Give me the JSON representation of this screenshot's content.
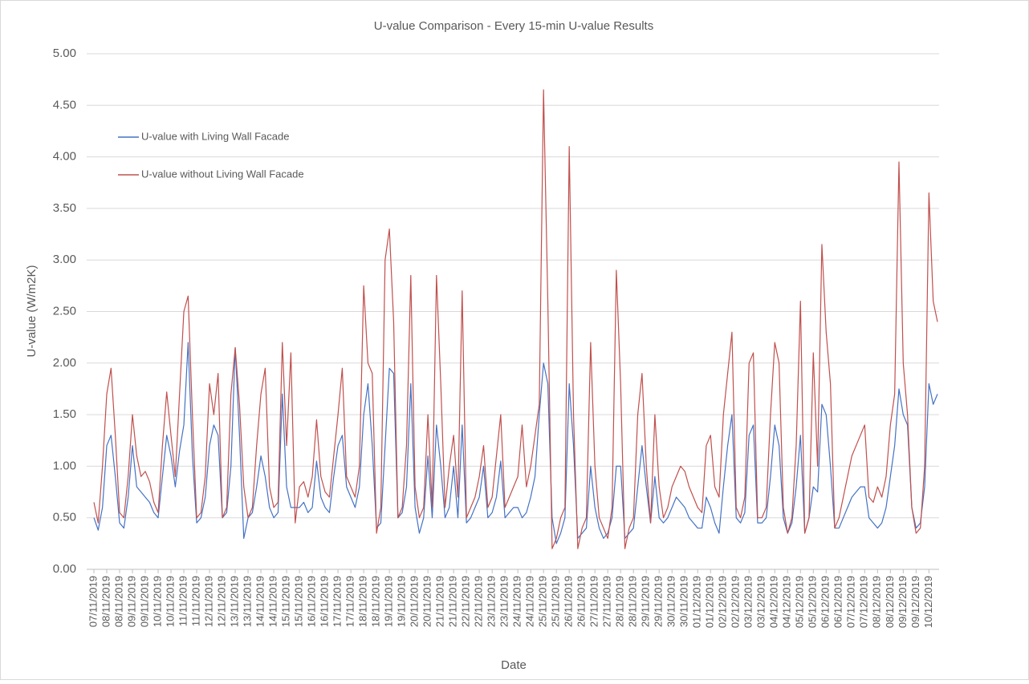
{
  "chart_data": {
    "type": "line",
    "title": "U-value Comparison - Every 15-min U-value Results",
    "x_label": "Date",
    "y_label": "U-value (W/m2K)",
    "categories": [
      "07/11/2019",
      null,
      null,
      "08/11/2019",
      null,
      null,
      "08/11/2019",
      null,
      null,
      "09/11/2019",
      null,
      null,
      "09/11/2019",
      null,
      null,
      "10/11/2019",
      null,
      null,
      "10/11/2019",
      null,
      null,
      "11/11/2019",
      null,
      null,
      "11/11/2019",
      null,
      null,
      "12/11/2019",
      null,
      null,
      "12/11/2019",
      null,
      null,
      "13/11/2019",
      null,
      null,
      "13/11/2019",
      null,
      null,
      "14/11/2019",
      null,
      null,
      "14/11/2019",
      null,
      null,
      "15/11/2019",
      null,
      null,
      "15/11/2019",
      null,
      null,
      "16/11/2019",
      null,
      null,
      "16/11/2019",
      null,
      null,
      "17/11/2019",
      null,
      null,
      "17/11/2019",
      null,
      null,
      "18/11/2019",
      null,
      null,
      "18/11/2019",
      null,
      null,
      "19/11/2019",
      null,
      null,
      "19/11/2019",
      null,
      null,
      "20/11/2019",
      null,
      null,
      "20/11/2019",
      null,
      null,
      "21/11/2019",
      null,
      null,
      "21/11/2019",
      null,
      null,
      "22/11/2019",
      null,
      null,
      "22/11/2019",
      null,
      null,
      "23/11/2019",
      null,
      null,
      "23/11/2019",
      null,
      null,
      "24/11/2019",
      null,
      null,
      "24/11/2019",
      null,
      null,
      "25/11/2019",
      null,
      null,
      "25/11/2019",
      null,
      null,
      "26/11/2019",
      null,
      null,
      "26/11/2019",
      null,
      null,
      "27/11/2019",
      null,
      null,
      "27/11/2019",
      null,
      null,
      "28/11/2019",
      null,
      null,
      "28/11/2019",
      null,
      null,
      "29/11/2019",
      null,
      null,
      "29/11/2019",
      null,
      null,
      "30/11/2019",
      null,
      null,
      "30/11/2019",
      null,
      null,
      "01/12/2019",
      null,
      null,
      "01/12/2019",
      null,
      null,
      "02/12/2019",
      null,
      null,
      "02/12/2019",
      null,
      null,
      "03/12/2019",
      null,
      null,
      "03/12/2019",
      null,
      null,
      "04/12/2019",
      null,
      null,
      "04/12/2019",
      null,
      null,
      "05/12/2019",
      null,
      null,
      "05/12/2019",
      null,
      null,
      "06/12/2019",
      null,
      null,
      "06/12/2019",
      null,
      null,
      "07/12/2019",
      null,
      null,
      "07/12/2019",
      null,
      null,
      "08/12/2019",
      null,
      null,
      "08/12/2019",
      null,
      null,
      "09/12/2019",
      null,
      null,
      "09/12/2019",
      null,
      null,
      "10/12/2019",
      null,
      null
    ],
    "series": [
      {
        "name": "U-value with Living Wall Facade",
        "color": "#4472c4",
        "values": [
          0.5,
          0.38,
          0.6,
          1.2,
          1.3,
          0.9,
          0.45,
          0.4,
          0.7,
          1.2,
          0.8,
          0.75,
          0.7,
          0.65,
          0.55,
          0.5,
          0.9,
          1.3,
          1.1,
          0.8,
          1.15,
          1.4,
          2.2,
          1.1,
          0.45,
          0.5,
          0.7,
          1.2,
          1.4,
          1.3,
          0.5,
          0.55,
          1.0,
          2.15,
          1.3,
          0.3,
          0.5,
          0.55,
          0.8,
          1.1,
          0.9,
          0.6,
          0.5,
          0.55,
          1.7,
          0.8,
          0.6,
          0.6,
          0.6,
          0.65,
          0.55,
          0.6,
          1.05,
          0.7,
          0.6,
          0.55,
          0.9,
          1.2,
          1.3,
          0.8,
          0.7,
          0.6,
          0.8,
          1.5,
          1.8,
          1.2,
          0.4,
          0.45,
          1.2,
          1.95,
          1.9,
          0.5,
          0.55,
          0.8,
          1.8,
          0.6,
          0.35,
          0.5,
          1.1,
          0.5,
          1.4,
          1.0,
          0.5,
          0.6,
          1.0,
          0.5,
          1.4,
          0.45,
          0.5,
          0.6,
          0.7,
          1.0,
          0.5,
          0.55,
          0.7,
          1.05,
          0.5,
          0.55,
          0.6,
          0.6,
          0.5,
          0.55,
          0.7,
          0.9,
          1.5,
          2.0,
          1.8,
          0.5,
          0.25,
          0.35,
          0.5,
          1.8,
          1.2,
          0.3,
          0.35,
          0.4,
          1.0,
          0.6,
          0.4,
          0.3,
          0.35,
          0.5,
          1.0,
          1.0,
          0.3,
          0.35,
          0.4,
          0.8,
          1.2,
          0.8,
          0.45,
          0.9,
          0.5,
          0.45,
          0.5,
          0.6,
          0.7,
          0.65,
          0.6,
          0.5,
          0.45,
          0.4,
          0.4,
          0.7,
          0.6,
          0.45,
          0.35,
          0.8,
          1.2,
          1.5,
          0.5,
          0.45,
          0.55,
          1.3,
          1.4,
          0.45,
          0.45,
          0.5,
          0.9,
          1.4,
          1.2,
          0.5,
          0.35,
          0.45,
          0.8,
          1.3,
          0.35,
          0.5,
          0.8,
          0.75,
          1.6,
          1.5,
          1.0,
          0.4,
          0.4,
          0.5,
          0.6,
          0.7,
          0.75,
          0.8,
          0.8,
          0.5,
          0.45,
          0.4,
          0.45,
          0.6,
          0.9,
          1.2,
          1.75,
          1.5,
          1.4,
          0.6,
          0.4,
          0.45,
          0.8,
          1.8,
          1.6,
          1.7
        ]
      },
      {
        "name": "U-value without Living Wall Facade",
        "color": "#c0504d",
        "values": [
          0.65,
          0.45,
          1.0,
          1.7,
          1.95,
          1.3,
          0.55,
          0.5,
          0.9,
          1.5,
          1.1,
          0.9,
          0.95,
          0.85,
          0.65,
          0.55,
          1.2,
          1.72,
          1.3,
          0.9,
          1.7,
          2.5,
          2.65,
          1.5,
          0.5,
          0.55,
          0.9,
          1.8,
          1.5,
          1.9,
          0.5,
          0.6,
          1.7,
          2.15,
          1.6,
          0.8,
          0.5,
          0.6,
          1.2,
          1.7,
          1.95,
          0.8,
          0.6,
          0.65,
          2.2,
          1.2,
          2.1,
          0.45,
          0.8,
          0.85,
          0.7,
          0.9,
          1.45,
          0.9,
          0.75,
          0.7,
          1.1,
          1.5,
          1.95,
          0.9,
          0.8,
          0.7,
          1.0,
          2.75,
          2.0,
          1.9,
          0.35,
          0.6,
          3.0,
          3.3,
          2.4,
          0.5,
          0.6,
          1.2,
          2.85,
          0.8,
          0.5,
          0.6,
          1.5,
          0.6,
          2.85,
          1.8,
          0.6,
          1.0,
          1.3,
          0.7,
          2.7,
          0.5,
          0.6,
          0.7,
          0.9,
          1.2,
          0.6,
          0.7,
          1.1,
          1.5,
          0.6,
          0.7,
          0.8,
          0.9,
          1.4,
          0.8,
          1.0,
          1.3,
          1.6,
          4.65,
          2.6,
          0.2,
          0.3,
          0.5,
          0.6,
          4.1,
          1.5,
          0.2,
          0.4,
          0.5,
          2.2,
          1.0,
          0.5,
          0.4,
          0.3,
          0.6,
          2.9,
          1.8,
          0.2,
          0.4,
          0.5,
          1.5,
          1.9,
          1.0,
          0.45,
          1.5,
          0.8,
          0.5,
          0.6,
          0.8,
          0.9,
          1.0,
          0.95,
          0.8,
          0.7,
          0.6,
          0.55,
          1.2,
          1.3,
          0.8,
          0.7,
          1.5,
          1.9,
          2.3,
          0.6,
          0.5,
          0.7,
          2.0,
          2.1,
          0.5,
          0.5,
          0.6,
          1.5,
          2.2,
          2.0,
          0.6,
          0.35,
          0.5,
          1.2,
          2.6,
          0.35,
          0.5,
          2.1,
          1.0,
          3.15,
          2.3,
          1.8,
          0.4,
          0.5,
          0.7,
          0.9,
          1.1,
          1.2,
          1.3,
          1.4,
          0.7,
          0.65,
          0.8,
          0.7,
          0.9,
          1.4,
          1.7,
          3.95,
          2.0,
          1.5,
          0.6,
          0.35,
          0.4,
          1.0,
          3.65,
          2.6,
          2.4
        ]
      }
    ],
    "ylim": [
      0,
      5
    ],
    "yticks": [
      {
        "value": 0,
        "label": "0.00"
      },
      {
        "value": 0.5,
        "label": "0.50"
      },
      {
        "value": 1,
        "label": "1.00"
      },
      {
        "value": 1.5,
        "label": "1.50"
      },
      {
        "value": 2,
        "label": "2.00"
      },
      {
        "value": 2.5,
        "label": "2.50"
      },
      {
        "value": 3,
        "label": "3.00"
      },
      {
        "value": 3.5,
        "label": "3.50"
      },
      {
        "value": 4,
        "label": "4.00"
      },
      {
        "value": 4.5,
        "label": "4.50"
      },
      {
        "value": 5,
        "label": "5.00"
      }
    ],
    "grid": true,
    "legend": "upper-left"
  }
}
